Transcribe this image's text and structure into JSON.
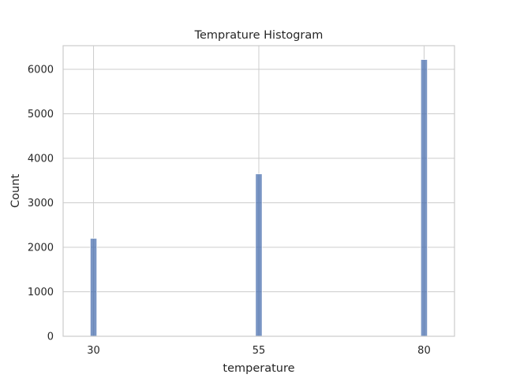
{
  "chart_data": {
    "type": "bar",
    "title": "Temprature Histogram",
    "xlabel": "temperature",
    "ylabel": "Count",
    "categories": [
      "30",
      "55",
      "80"
    ],
    "x": [
      30,
      55,
      80
    ],
    "values": [
      2200,
      3650,
      6220
    ],
    "xlim": [
      25.4,
      84.6
    ],
    "ylim": [
      0,
      6531
    ],
    "x_ticks": [
      30,
      55,
      80
    ],
    "y_ticks": [
      0,
      1000,
      2000,
      3000,
      4000,
      5000,
      6000
    ],
    "bar_width_data": 1.0,
    "grid": true,
    "legend": "none",
    "colors": {
      "bar": "#4c72b0",
      "grid": "#cccccc",
      "text": "#262626"
    }
  }
}
